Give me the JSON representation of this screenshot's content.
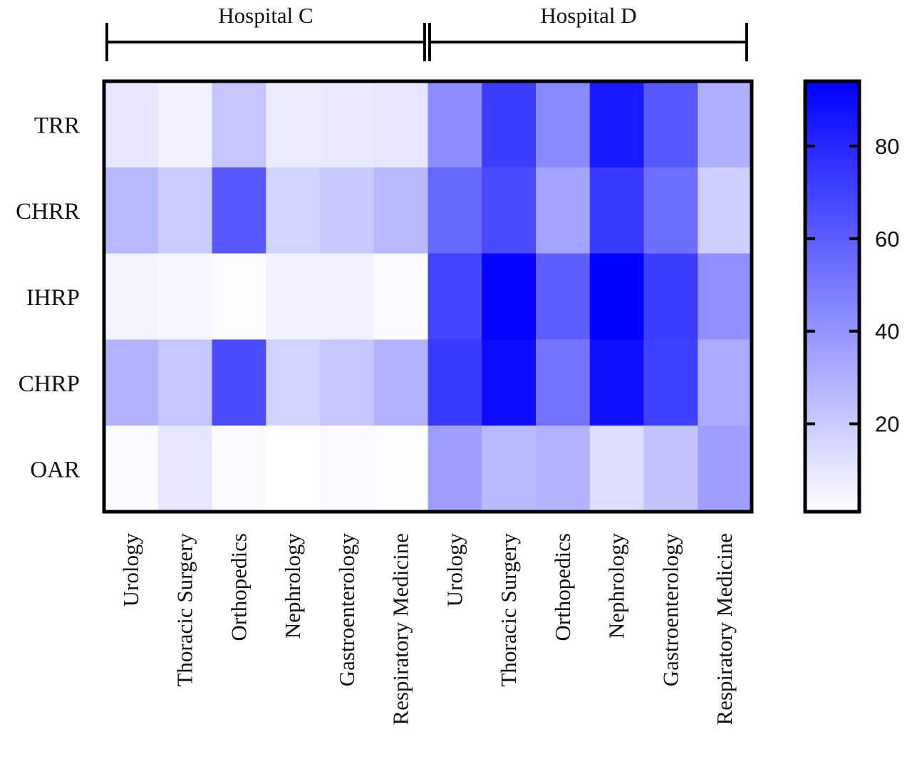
{
  "chart_data": {
    "type": "heatmap",
    "title": "",
    "xlabel": "",
    "ylabel": "",
    "groups": [
      {
        "label": "Hospital C",
        "columns": [
          0,
          1,
          2,
          3,
          4,
          5
        ]
      },
      {
        "label": "Hospital D",
        "columns": [
          6,
          7,
          8,
          9,
          10,
          11
        ]
      }
    ],
    "columns": [
      "Urology",
      "Thoracic Surgery",
      "Orthopedics",
      "Nephrology",
      "Gastroenterology",
      "Respiratory Medicine",
      "Urology",
      "Thoracic Surgery",
      "Orthopedics",
      "Nephrology",
      "Gastroenterology",
      "Respiratory Medicine"
    ],
    "rows": [
      "TRR",
      "CHRR",
      "IHRP",
      "CHRP",
      "OAR"
    ],
    "values": [
      [
        10,
        6,
        22,
        8,
        9,
        10,
        43,
        72,
        44,
        85,
        62,
        30
      ],
      [
        27,
        20,
        62,
        17,
        21,
        27,
        56,
        67,
        35,
        73,
        54,
        19
      ],
      [
        5,
        4,
        2,
        6,
        6,
        3,
        70,
        93,
        60,
        96,
        72,
        42
      ],
      [
        29,
        22,
        67,
        17,
        22,
        29,
        73,
        90,
        52,
        88,
        71,
        32
      ],
      [
        3,
        10,
        3,
        1,
        3,
        2,
        36,
        27,
        29,
        13,
        23,
        36
      ]
    ],
    "colorbar": {
      "range": [
        1,
        94
      ],
      "ticks": [
        20,
        40,
        60,
        80
      ],
      "color_min": "#ffffff",
      "color_max": "#0000ff"
    }
  }
}
